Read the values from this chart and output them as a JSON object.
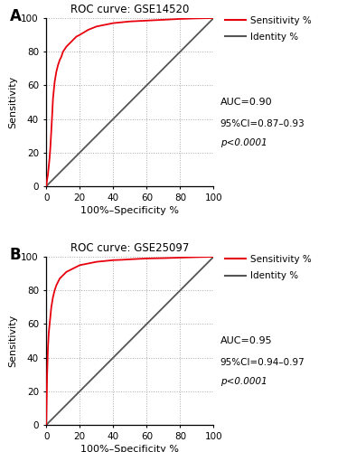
{
  "panel_A": {
    "title": "ROC curve: GSE14520",
    "auc": "AUC=0.90",
    "ci": "95%CI=0.87–0.93",
    "pval": "p<0.0001",
    "roc_color": "#e8000d",
    "identity_color": "#555555"
  },
  "panel_B": {
    "title": "ROC curve: GSE25097",
    "auc": "AUC=0.95",
    "ci": "95%CI=0.94–0.97",
    "pval": "p<0.0001",
    "roc_color": "#e8000d",
    "identity_color": "#555555"
  },
  "xlabel": "100%–Specificity %",
  "ylabel": "Sensitivity",
  "xlim": [
    0,
    100
  ],
  "ylim": [
    0,
    100
  ],
  "xticks": [
    0,
    20,
    40,
    60,
    80,
    100
  ],
  "yticks": [
    0,
    20,
    40,
    60,
    80,
    100
  ],
  "legend_sensitivity": "Sensitivity %",
  "legend_identity": "Identity %",
  "panel_labels": [
    "A",
    "B"
  ],
  "background_color": "#ffffff",
  "grid_color": "#aaaaaa",
  "fig_width": 3.94,
  "fig_height": 5.0,
  "dpi": 100
}
